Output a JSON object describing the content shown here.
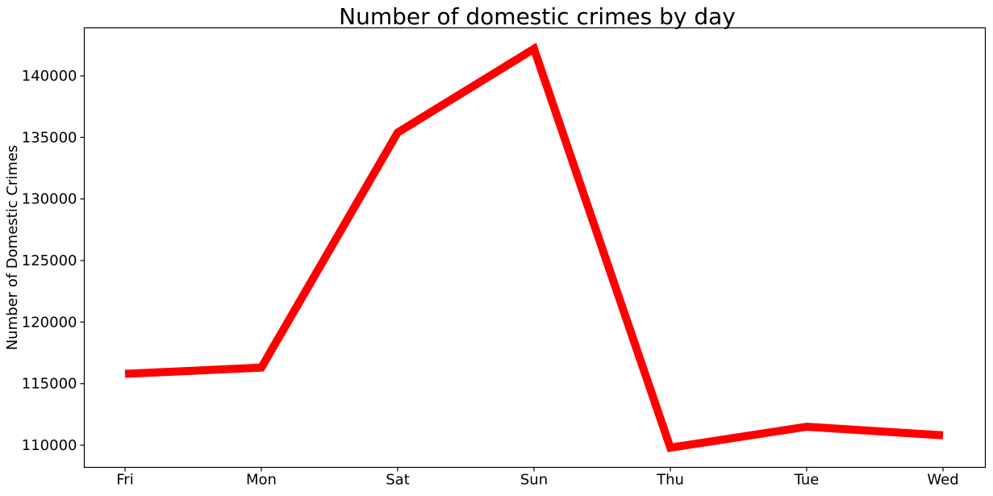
{
  "chart_data": {
    "type": "line",
    "title": "Number of domestic crimes by day",
    "xlabel": "",
    "ylabel": "Number of Domestic Crimes",
    "categories": [
      "Fri",
      "Mon",
      "Sat",
      "Sun",
      "Thu",
      "Tue",
      "Wed"
    ],
    "series": [
      {
        "values": [
          115800,
          116300,
          135400,
          142200,
          109800,
          111500,
          110800
        ],
        "color": "#ff0000"
      }
    ],
    "ylim": [
      108200,
      143900
    ],
    "yticks": [
      110000,
      115000,
      120000,
      125000,
      130000,
      135000,
      140000
    ],
    "ytick_labels": [
      "110000",
      "115000",
      "120000",
      "125000",
      "130000",
      "135000",
      "140000"
    ],
    "grid": false,
    "legend": "none"
  }
}
